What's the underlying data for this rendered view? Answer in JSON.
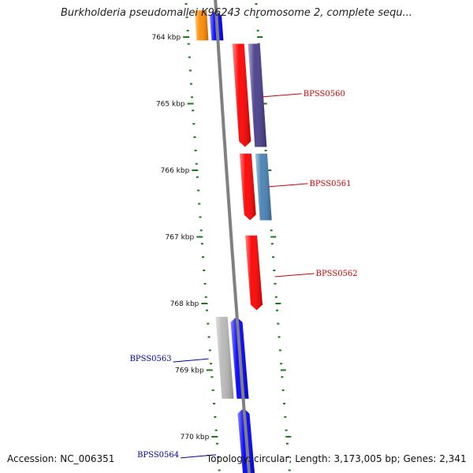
{
  "title": "Burkholderia pseudomallei K96243 chromosome 2, complete sequ...",
  "footer": {
    "accession": "Accession: NC_006351",
    "summary": "Topology: circular; Length: 3,173,005 bp; Genes: 2,341"
  },
  "colors": {
    "backbone": "#808080",
    "ticks": "#1a7a1a",
    "red_gene": "#ff0000",
    "blue_gene": "#0000ff",
    "purple_gene": "#483d8b",
    "steel_gene": "#4682b4",
    "orange_gene": "#ff8c00",
    "grey_gene": "#b8b8b8",
    "red_label": "#cc0000",
    "blue_label": "#0000aa"
  },
  "scale": {
    "ticks": [
      {
        "label": "764 kbp",
        "kbp": 764
      },
      {
        "label": "765 kbp",
        "kbp": 765
      },
      {
        "label": "766 kbp",
        "kbp": 766
      },
      {
        "label": "767 kbp",
        "kbp": 767
      },
      {
        "label": "768 kbp",
        "kbp": 768
      },
      {
        "label": "769 kbp",
        "kbp": 769
      },
      {
        "label": "770 kbp",
        "kbp": 770
      }
    ]
  },
  "genes": [
    {
      "name": "orange-feature",
      "start_kbp": 763.6,
      "end_kbp": 764.05,
      "track": -2,
      "color": "orange_gene",
      "label": ""
    },
    {
      "name": "blue-feature-top",
      "start_kbp": 763.6,
      "end_kbp": 764.05,
      "track": -1,
      "color": "blue_gene",
      "label": ""
    },
    {
      "name": "BPSS0560-red",
      "start_kbp": 764.1,
      "end_kbp": 765.65,
      "track": 1,
      "color": "red_gene",
      "label": ""
    },
    {
      "name": "BPSS0560-purple",
      "start_kbp": 764.1,
      "end_kbp": 765.65,
      "track": 2,
      "color": "purple_gene",
      "label": "BPSS0560",
      "label_kbp": 764.85,
      "label_side": "right"
    },
    {
      "name": "BPSS0561-red",
      "start_kbp": 765.75,
      "end_kbp": 766.75,
      "track": 1,
      "color": "red_gene",
      "label": ""
    },
    {
      "name": "BPSS0561-steel",
      "start_kbp": 765.75,
      "end_kbp": 766.75,
      "track": 2,
      "color": "steel_gene",
      "label": "BPSS0561",
      "label_kbp": 766.2,
      "label_side": "right"
    },
    {
      "name": "BPSS0562-red",
      "start_kbp": 766.98,
      "end_kbp": 768.1,
      "track": 1,
      "color": "red_gene",
      "label": "BPSS0562",
      "label_kbp": 767.55,
      "label_side": "right"
    },
    {
      "name": "BPSS0563-grey",
      "start_kbp": 768.2,
      "end_kbp": 769.43,
      "track": -2,
      "color": "grey_gene",
      "label": ""
    },
    {
      "name": "BPSS0563-blue",
      "start_kbp": 768.2,
      "end_kbp": 769.43,
      "track": -1,
      "color": "blue_gene",
      "label": "BPSS0563",
      "label_kbp": 768.83,
      "label_side": "left"
    },
    {
      "name": "BPSS0564-blue",
      "start_kbp": 769.57,
      "end_kbp": 770.6,
      "track": -1,
      "color": "blue_gene",
      "label": "BPSS0564",
      "label_kbp": 770.27,
      "label_side": "left"
    }
  ]
}
